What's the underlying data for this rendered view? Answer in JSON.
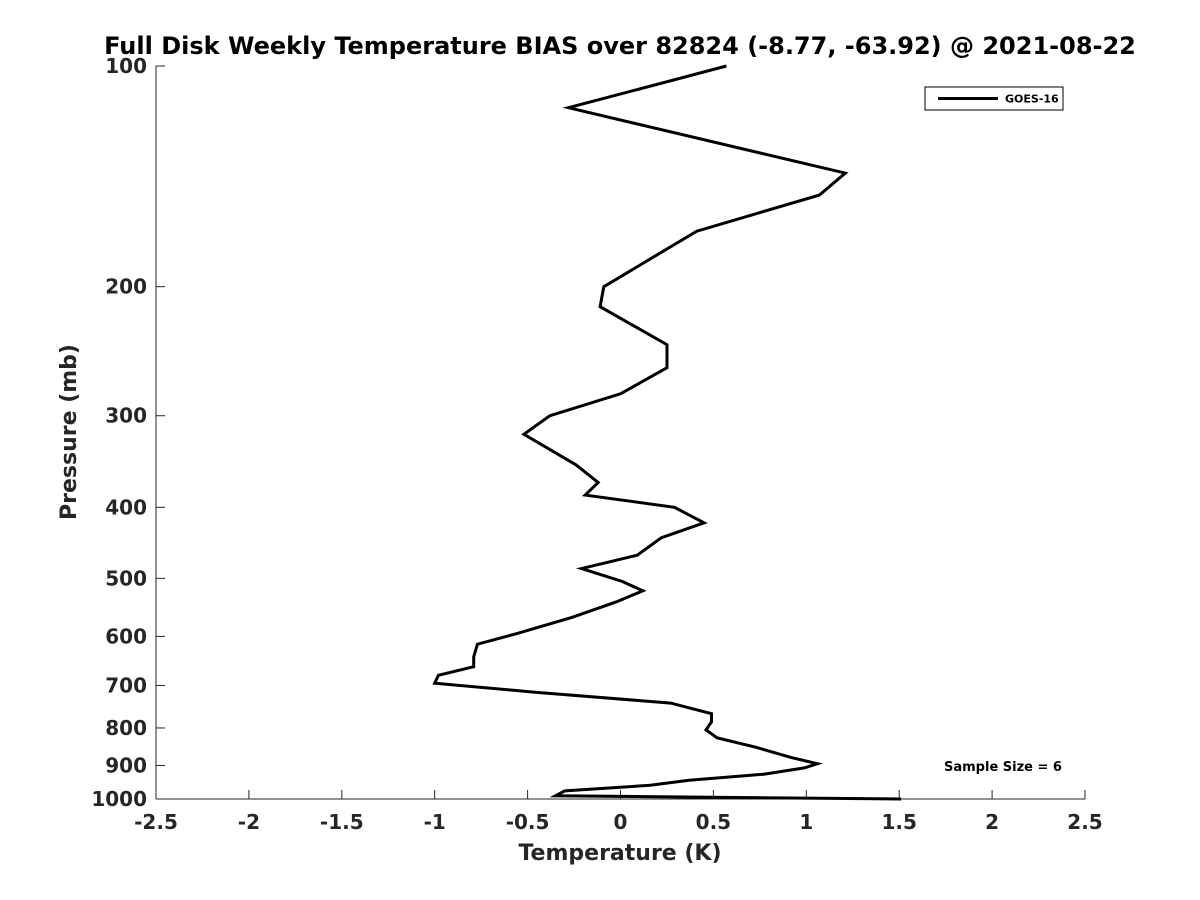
{
  "chart_data": {
    "type": "line",
    "title": "Full Disk Weekly Temperature BIAS over 82824 (-8.77, -63.92) @ 2021-08-22",
    "xlabel": "Temperature (K)",
    "ylabel": "Pressure (mb)",
    "xlim": [
      -2.5,
      2.5
    ],
    "ylim": [
      100,
      1000
    ],
    "y_scale": "log",
    "y_reversed": true,
    "x_ticks": [
      -2.5,
      -2,
      -1.5,
      -1,
      -0.5,
      0,
      0.5,
      1,
      1.5,
      2,
      2.5
    ],
    "x_tick_labels": [
      "-2.5",
      "-2",
      "-1.5",
      "-1",
      "-0.5",
      "0",
      "0.5",
      "1",
      "1.5",
      "2",
      "2.5"
    ],
    "y_ticks": [
      100,
      200,
      300,
      400,
      500,
      600,
      700,
      800,
      900,
      1000
    ],
    "y_tick_labels": [
      "100",
      "200",
      "300",
      "400",
      "500",
      "600",
      "700",
      "800",
      "900",
      "1000"
    ],
    "grid": false,
    "legend_position": "top-right",
    "annotation": "Sample Size = 6",
    "series": [
      {
        "name": "GOES-16",
        "color": "#000000",
        "x": [
          0.57,
          -0.28,
          1.21,
          1.07,
          0.41,
          -0.09,
          -0.11,
          0.25,
          0.25,
          0.0,
          -0.38,
          -0.52,
          -0.24,
          -0.12,
          -0.19,
          0.29,
          0.45,
          0.22,
          0.09,
          -0.21,
          0.01,
          0.12,
          -0.02,
          -0.26,
          -0.56,
          -0.77,
          -0.79,
          -0.79,
          -0.98,
          -1.0,
          -0.46,
          0.27,
          0.49,
          0.49,
          0.46,
          0.52,
          0.73,
          0.92,
          1.06,
          0.99,
          0.77,
          0.37,
          0.16,
          -0.3,
          -0.35,
          1.51
        ],
        "y": [
          100,
          114,
          140,
          150,
          168,
          200,
          213,
          240,
          258,
          280,
          300,
          318,
          350,
          370,
          385,
          400,
          420,
          440,
          465,
          485,
          505,
          520,
          538,
          565,
          595,
          615,
          640,
          660,
          678,
          695,
          715,
          740,
          765,
          785,
          805,
          825,
          850,
          878,
          895,
          907,
          925,
          943,
          958,
          975,
          990,
          1000
        ]
      }
    ]
  }
}
